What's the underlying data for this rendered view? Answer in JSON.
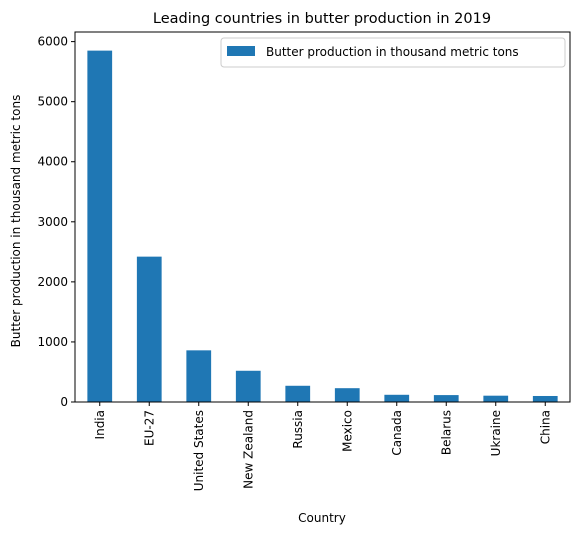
{
  "chart_data": {
    "type": "bar",
    "title": "Leading countries in butter production in 2019",
    "xlabel": "Country",
    "ylabel": "Butter production in thousand metric tons",
    "categories": [
      "India",
      "EU-27",
      "United States",
      "New Zealand",
      "Russia",
      "Mexico",
      "Canada",
      "Belarus",
      "Ukraine",
      "China"
    ],
    "series": [
      {
        "name": "Butter production in thousand metric tons",
        "values": [
          5850,
          2420,
          860,
          520,
          270,
          230,
          120,
          115,
          105,
          100
        ],
        "color": "#1f77b4"
      }
    ],
    "ylim": [
      0,
      6160
    ],
    "yticks": [
      "0",
      "1000",
      "2000",
      "3000",
      "4000",
      "5000",
      "6000"
    ],
    "legend": "top-right",
    "grid": false
  }
}
